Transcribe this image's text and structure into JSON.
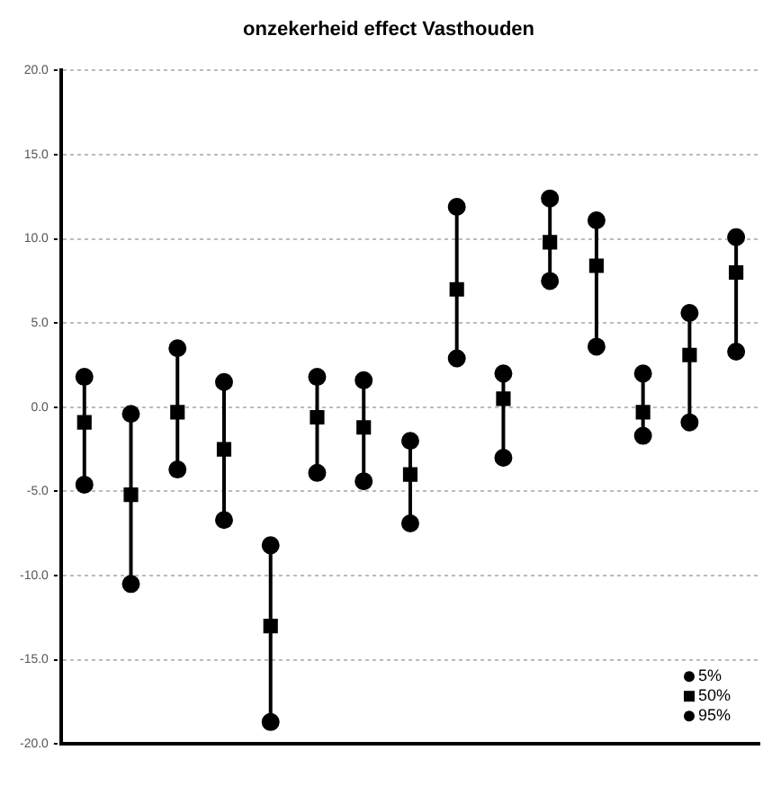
{
  "chart_data": {
    "type": "scatter",
    "title": "onzekerheid effect Vasthouden",
    "categories": [
      null,
      null,
      null,
      null,
      null,
      null,
      null,
      null,
      null,
      null,
      null,
      null,
      null,
      null,
      null
    ],
    "series": [
      {
        "name": "5%",
        "color": "#000000",
        "marker": "circle",
        "values": [
          1.8,
          -0.4,
          3.5,
          1.5,
          -8.2,
          1.8,
          1.6,
          -2.0,
          11.9,
          2.0,
          12.4,
          11.1,
          2.0,
          5.6,
          10.1
        ]
      },
      {
        "name": "50%",
        "color": "#000000",
        "marker": "square",
        "values": [
          -0.9,
          -5.2,
          -0.3,
          -2.5,
          -13.0,
          -0.6,
          -1.2,
          -4.0,
          7.0,
          0.5,
          9.8,
          8.4,
          -0.3,
          3.1,
          8.0
        ]
      },
      {
        "name": "95%",
        "color": "#000000",
        "marker": "circle",
        "values": [
          -4.6,
          -10.5,
          -3.7,
          -6.7,
          -18.7,
          -3.9,
          -4.4,
          -6.9,
          2.9,
          -3.0,
          7.5,
          3.6,
          -1.7,
          -0.9,
          3.3
        ]
      }
    ],
    "ylim": [
      -20,
      20
    ],
    "yticks": [
      {
        "value": -20,
        "label": "-20.0"
      },
      {
        "value": -15,
        "label": "-15.0"
      },
      {
        "value": -10,
        "label": "-10.0"
      },
      {
        "value": -5,
        "label": "-5.0"
      },
      {
        "value": 0,
        "label": "0.0"
      },
      {
        "value": 5,
        "label": "5.0"
      },
      {
        "value": 10,
        "label": "10.0"
      },
      {
        "value": 15,
        "label": "15.0"
      },
      {
        "value": 20,
        "label": "20.0"
      }
    ],
    "grid": "y",
    "legend": "bottom right"
  }
}
